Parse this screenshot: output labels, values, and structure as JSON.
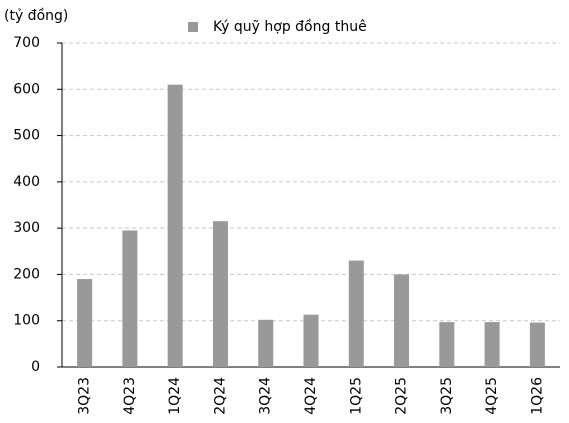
{
  "chart_data": {
    "type": "bar",
    "y_axis_label": "(tỷ đồng)",
    "series": [
      {
        "name": "Ký quỹ hợp đồng thuê",
        "color": "#999999",
        "values": [
          190,
          295,
          610,
          315,
          102,
          113,
          230,
          200,
          97,
          97,
          96
        ]
      }
    ],
    "categories": [
      "3Q23",
      "4Q23",
      "1Q24",
      "2Q24",
      "3Q24",
      "4Q24",
      "1Q25",
      "2Q25",
      "3Q25",
      "4Q25",
      "1Q26"
    ],
    "ylim": [
      0,
      700
    ],
    "yticks": [
      0,
      100,
      200,
      300,
      400,
      500,
      600,
      700
    ],
    "grid": true,
    "legend": "top"
  }
}
